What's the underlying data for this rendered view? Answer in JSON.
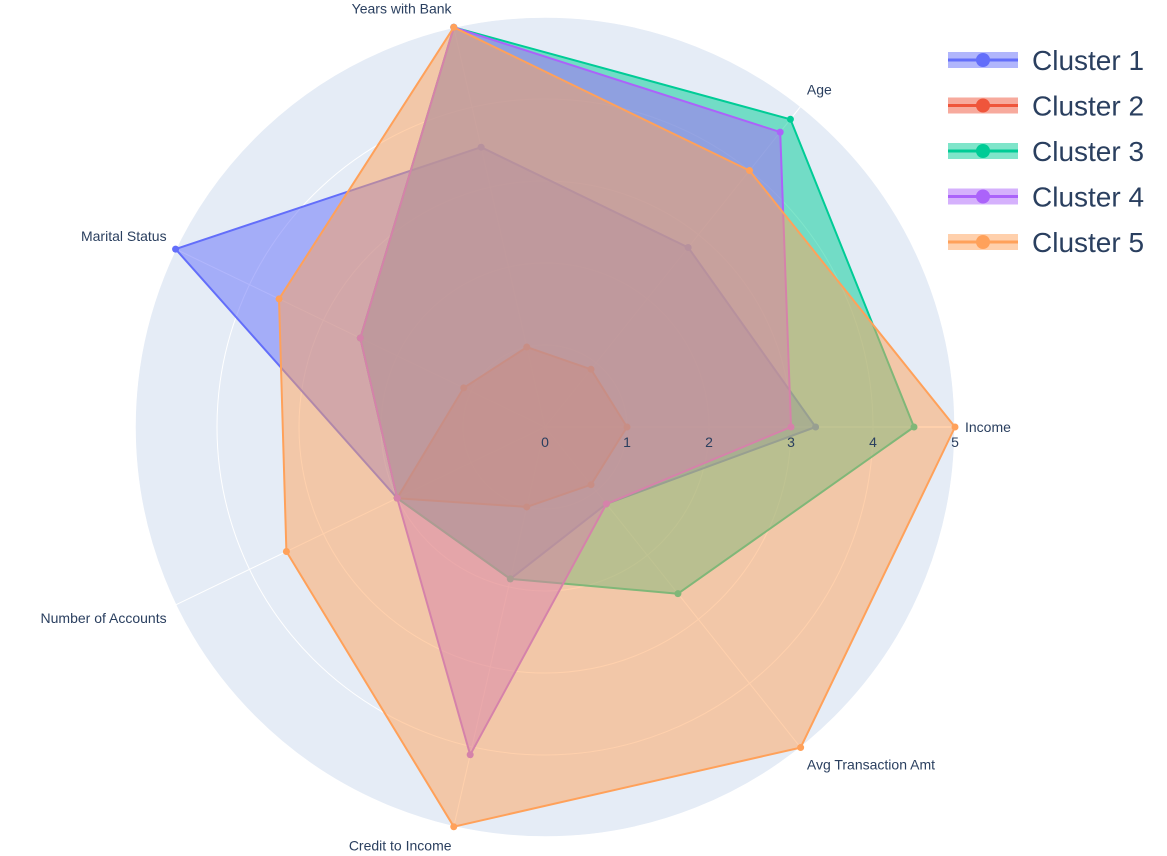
{
  "chart_data": {
    "type": "radar",
    "title": "",
    "axes": [
      "Income",
      "Age",
      "Years with Bank",
      "Marital Status",
      "Number of Accounts",
      "Credit to Income",
      "Avg Transaction Amt"
    ],
    "radial_ticks": [
      "0",
      "1",
      "2",
      "3",
      "4",
      "5"
    ],
    "radial_range": [
      0,
      5
    ],
    "grid": true,
    "legend_position": "top-right",
    "series": [
      {
        "name": "Cluster 1",
        "color": "#636efa",
        "values": [
          3.3,
          2.8,
          3.5,
          5,
          2,
          1.9,
          1.2
        ]
      },
      {
        "name": "Cluster 2",
        "color": "#ef553b",
        "values": [
          1,
          0.9,
          1,
          1.1,
          2,
          1,
          0.9
        ]
      },
      {
        "name": "Cluster 3",
        "color": "#00cc96",
        "values": [
          4.5,
          4.8,
          5,
          2.5,
          2,
          1.9,
          2.6
        ]
      },
      {
        "name": "Cluster 4",
        "color": "#ab63fa",
        "values": [
          3,
          4.6,
          5,
          2.5,
          2,
          4.1,
          1.2
        ]
      },
      {
        "name": "Cluster 5",
        "color": "#ffa15a",
        "values": [
          5,
          4,
          5,
          3.6,
          3.5,
          5,
          5
        ]
      }
    ]
  }
}
